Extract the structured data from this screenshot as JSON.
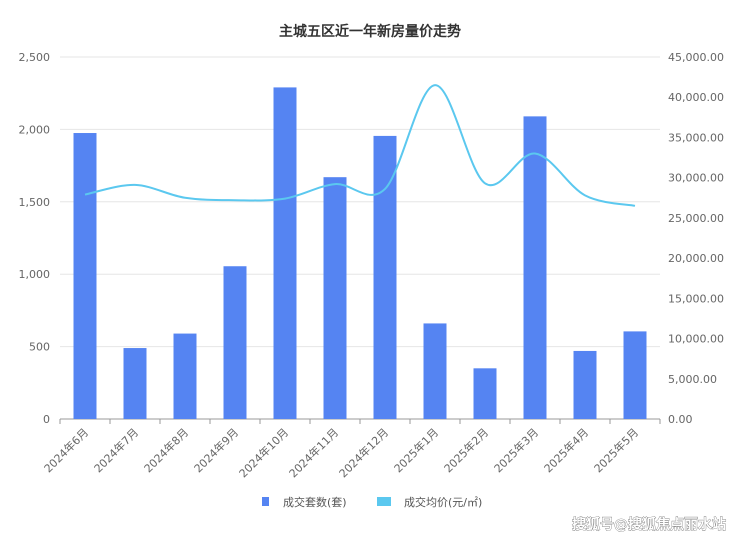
{
  "chart_data": {
    "type": "bar",
    "title": "主城五区近一年新房量价走势",
    "categories": [
      "2024年6月",
      "2024年7月",
      "2024年8月",
      "2024年9月",
      "2024年10月",
      "2024年11月",
      "2024年12月",
      "2025年1月",
      "2025年2月",
      "2025年3月",
      "2025年4月",
      "2025年5月"
    ],
    "series": [
      {
        "name": "成交套数(套)",
        "type": "bar",
        "axis": "left",
        "color": "#5584f2",
        "values": [
          1975,
          490,
          590,
          1055,
          2290,
          1670,
          1955,
          660,
          350,
          2090,
          470,
          605
        ]
      },
      {
        "name": "成交均价(元/㎡)",
        "type": "line",
        "axis": "right",
        "color": "#5bc8ef",
        "values": [
          27900,
          29100,
          27500,
          27200,
          27400,
          29200,
          28600,
          41500,
          29300,
          33000,
          27800,
          26500
        ]
      }
    ],
    "y_left": {
      "ylim": [
        0,
        2500
      ],
      "ticks": [
        0,
        500,
        1000,
        1500,
        2000,
        2500
      ],
      "tick_labels": [
        "0",
        "500",
        "1,000",
        "1,500",
        "2,000",
        "2,500"
      ]
    },
    "y_right": {
      "ylim": [
        0,
        45000
      ],
      "ticks": [
        0,
        5000,
        10000,
        15000,
        20000,
        25000,
        30000,
        35000,
        40000,
        45000
      ],
      "tick_labels": [
        "0.00",
        "5,000.00",
        "10,000.00",
        "15,000.00",
        "20,000.00",
        "25,000.00",
        "30,000.00",
        "35,000.00",
        "40,000.00",
        "45,000.00"
      ]
    },
    "grid": true,
    "legend_position": "bottom-center"
  },
  "watermark": "搜狐号@搜狐焦点丽水站"
}
